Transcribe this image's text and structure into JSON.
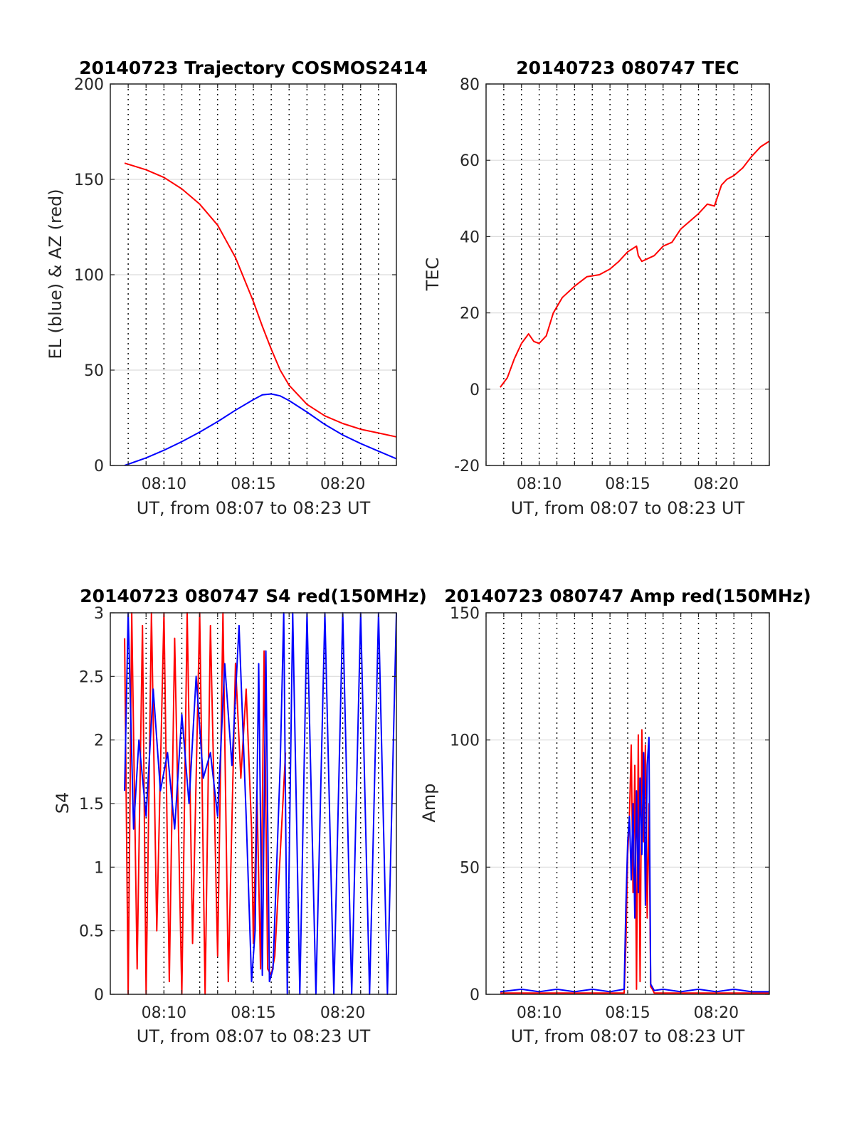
{
  "colors": {
    "elevation": "#0000ff",
    "azimuth": "#ff0000",
    "red_signal": "#ff0000",
    "blue_signal": "#0000ff"
  },
  "chart_data": [
    {
      "id": "trajectory",
      "type": "line",
      "title": "20140723 Trajectory COSMOS2414",
      "xlabel": "UT, from 08:07 to 08:23 UT",
      "ylabel": "EL (blue) & AZ (red)",
      "x_unit": "minutes after 08:00 UT",
      "xlim": [
        7.0,
        23.0
      ],
      "ylim": [
        0,
        200
      ],
      "xticks": [
        10,
        15,
        20
      ],
      "xtick_labels": [
        "08:10",
        "08:15",
        "08:20"
      ],
      "yticks": [
        0,
        50,
        100,
        150,
        200
      ],
      "ytick_labels": [
        "0",
        "50",
        "100",
        "150",
        "200"
      ],
      "grid": true,
      "series": [
        {
          "color": "#ff0000",
          "x": [
            7.8,
            9,
            10,
            11,
            12,
            13,
            14,
            15,
            15.5,
            16,
            16.5,
            17,
            18,
            19,
            20,
            21,
            22,
            23
          ],
          "y": [
            158.5,
            155,
            151,
            145,
            137,
            126,
            109,
            86,
            73,
            61,
            50,
            42,
            32,
            26,
            22,
            19,
            17,
            15
          ]
        },
        {
          "color": "#0000ff",
          "x": [
            7.8,
            9,
            10,
            11,
            12,
            13,
            14,
            15,
            15.5,
            16,
            16.5,
            17,
            18,
            19,
            20,
            21,
            22,
            23
          ],
          "y": [
            0,
            4,
            8,
            12.5,
            17.5,
            23,
            29,
            34.5,
            37,
            37.5,
            36.5,
            34,
            28,
            21.5,
            16,
            11.5,
            7.5,
            3.5
          ]
        }
      ]
    },
    {
      "id": "tec",
      "type": "line",
      "title": "20140723 080747 TEC",
      "xlabel": "UT, from 08:07 to 08:23 UT",
      "ylabel": "TEC",
      "x_unit": "minutes after 08:00 UT",
      "xlim": [
        7.0,
        23.0
      ],
      "ylim": [
        -20,
        80
      ],
      "xticks": [
        10,
        15,
        20
      ],
      "xtick_labels": [
        "08:10",
        "08:15",
        "08:20"
      ],
      "yticks": [
        -20,
        0,
        20,
        40,
        60,
        80
      ],
      "ytick_labels": [
        "-20",
        "0",
        "20",
        "40",
        "60",
        "80"
      ],
      "grid": true,
      "series": [
        {
          "color": "#ff0000",
          "x": [
            7.8,
            8.2,
            8.6,
            9.0,
            9.4,
            9.7,
            10.0,
            10.4,
            10.8,
            11.3,
            12.0,
            12.7,
            13.4,
            14.0,
            14.5,
            15.0,
            15.5,
            15.6,
            15.8,
            16.5,
            17.0,
            17.5,
            18.0,
            18.5,
            19.0,
            19.5,
            19.9,
            20.3,
            20.6,
            21.0,
            21.5,
            22.0,
            22.5,
            23.0
          ],
          "y": [
            0.5,
            3,
            8,
            12,
            14.5,
            12.5,
            12,
            14,
            20,
            24,
            27,
            29.5,
            30,
            31.5,
            33.5,
            36,
            37.5,
            35,
            33.5,
            35,
            37.5,
            38.5,
            42,
            44,
            46,
            48.5,
            48,
            53.5,
            55,
            56,
            58,
            61,
            63.5,
            65
          ]
        }
      ]
    },
    {
      "id": "s4",
      "type": "line",
      "title": "20140723 080747 S4 red(150MHz)",
      "xlabel": "UT, from 08:07 to 08:23 UT",
      "ylabel": "S4",
      "x_unit": "minutes after 08:00 UT",
      "xlim": [
        7.0,
        23.0
      ],
      "ylim": [
        0,
        3
      ],
      "xticks": [
        10,
        15,
        20
      ],
      "xtick_labels": [
        "08:10",
        "08:15",
        "08:20"
      ],
      "yticks": [
        0,
        0.5,
        1,
        1.5,
        2,
        2.5,
        3
      ],
      "ytick_labels": [
        "0",
        "0.5",
        "1",
        "1.5",
        "2",
        "2.5",
        "3"
      ],
      "grid": true,
      "series": [
        {
          "color": "#ff0000",
          "x": [
            7.8,
            8.0,
            8.2,
            8.5,
            8.8,
            9.0,
            9.3,
            9.6,
            10.0,
            10.3,
            10.6,
            11.0,
            11.3,
            11.6,
            12.0,
            12.3,
            12.6,
            13.0,
            13.3,
            13.6,
            14.0,
            14.3,
            14.6,
            14.9,
            15.0,
            15.2,
            15.4,
            15.6,
            15.8,
            16.0,
            16.2,
            16.5,
            16.8
          ],
          "y": [
            2.8,
            0,
            3,
            0.2,
            2.9,
            0,
            3,
            0.5,
            3,
            0.1,
            2.8,
            0,
            3,
            0.4,
            3,
            0,
            2.9,
            0.3,
            3,
            0.1,
            2.6,
            1.7,
            2.4,
            1.3,
            0.4,
            1.6,
            0.2,
            2.7,
            0.2,
            0.15,
            0.3,
            1.1,
            1.9
          ]
        },
        {
          "color": "#0000ff",
          "x": [
            7.8,
            8.0,
            8.3,
            8.6,
            9.0,
            9.4,
            9.8,
            10.2,
            10.6,
            11.0,
            11.4,
            11.8,
            12.2,
            12.6,
            13.0,
            13.4,
            13.8,
            14.2,
            14.6,
            14.9,
            15.1,
            15.3,
            15.5,
            15.7,
            15.9,
            16.1,
            16.3,
            16.5,
            16.7,
            16.9,
            17.2,
            17.6,
            18.0,
            18.5,
            19.0,
            19.5,
            20.0,
            20.5,
            21.0,
            21.5,
            22.0,
            22.5,
            23.0
          ],
          "y": [
            1.6,
            3,
            1.3,
            2.0,
            1.4,
            2.4,
            1.6,
            1.9,
            1.3,
            2.2,
            1.5,
            2.5,
            1.7,
            1.9,
            1.4,
            2.6,
            1.8,
            2.9,
            1.4,
            0.1,
            0.5,
            2.6,
            0.15,
            2.7,
            0.1,
            0.2,
            1.0,
            1.8,
            3,
            0,
            3,
            0,
            3,
            0,
            3,
            0,
            3,
            0,
            3,
            0,
            3,
            0,
            3
          ]
        }
      ]
    },
    {
      "id": "amp",
      "type": "line",
      "title": "20140723 080747 Amp red(150MHz)",
      "xlabel": "UT, from 08:07 to 08:23 UT",
      "ylabel": "Amp",
      "x_unit": "minutes after 08:00 UT",
      "xlim": [
        7.0,
        23.0
      ],
      "ylim": [
        0,
        150
      ],
      "xticks": [
        10,
        15,
        20
      ],
      "xtick_labels": [
        "08:10",
        "08:15",
        "08:20"
      ],
      "yticks": [
        0,
        50,
        100,
        150
      ],
      "ytick_labels": [
        "0",
        "50",
        "100",
        "150"
      ],
      "grid": true,
      "series": [
        {
          "color": "#ff0000",
          "x": [
            7.8,
            14.8,
            14.9,
            15.0,
            15.1,
            15.2,
            15.3,
            15.4,
            15.5,
            15.6,
            15.7,
            15.8,
            15.9,
            16.0,
            16.1,
            16.2,
            16.3,
            16.4,
            16.5,
            16.6,
            23.0
          ],
          "y": [
            0.5,
            0.5,
            20,
            55,
            70,
            98,
            40,
            90,
            2,
            102,
            5,
            104,
            60,
            98,
            30,
            75,
            3,
            2,
            0.5,
            0.5,
            0.5
          ]
        },
        {
          "color": "#0000ff",
          "x": [
            7.8,
            9,
            10,
            11,
            12,
            13,
            14,
            14.8,
            14.9,
            15.0,
            15.1,
            15.2,
            15.3,
            15.4,
            15.5,
            15.6,
            15.7,
            15.8,
            15.9,
            16.0,
            16.1,
            16.2,
            16.3,
            16.5,
            17,
            18,
            19,
            20,
            21,
            22,
            23
          ],
          "y": [
            1,
            2,
            1,
            2,
            1,
            2,
            1,
            2,
            35,
            60,
            70,
            45,
            75,
            30,
            80,
            40,
            85,
            55,
            95,
            35,
            90,
            101,
            4,
            1.5,
            2,
            1,
            2,
            1,
            2,
            1,
            1
          ]
        }
      ]
    }
  ]
}
